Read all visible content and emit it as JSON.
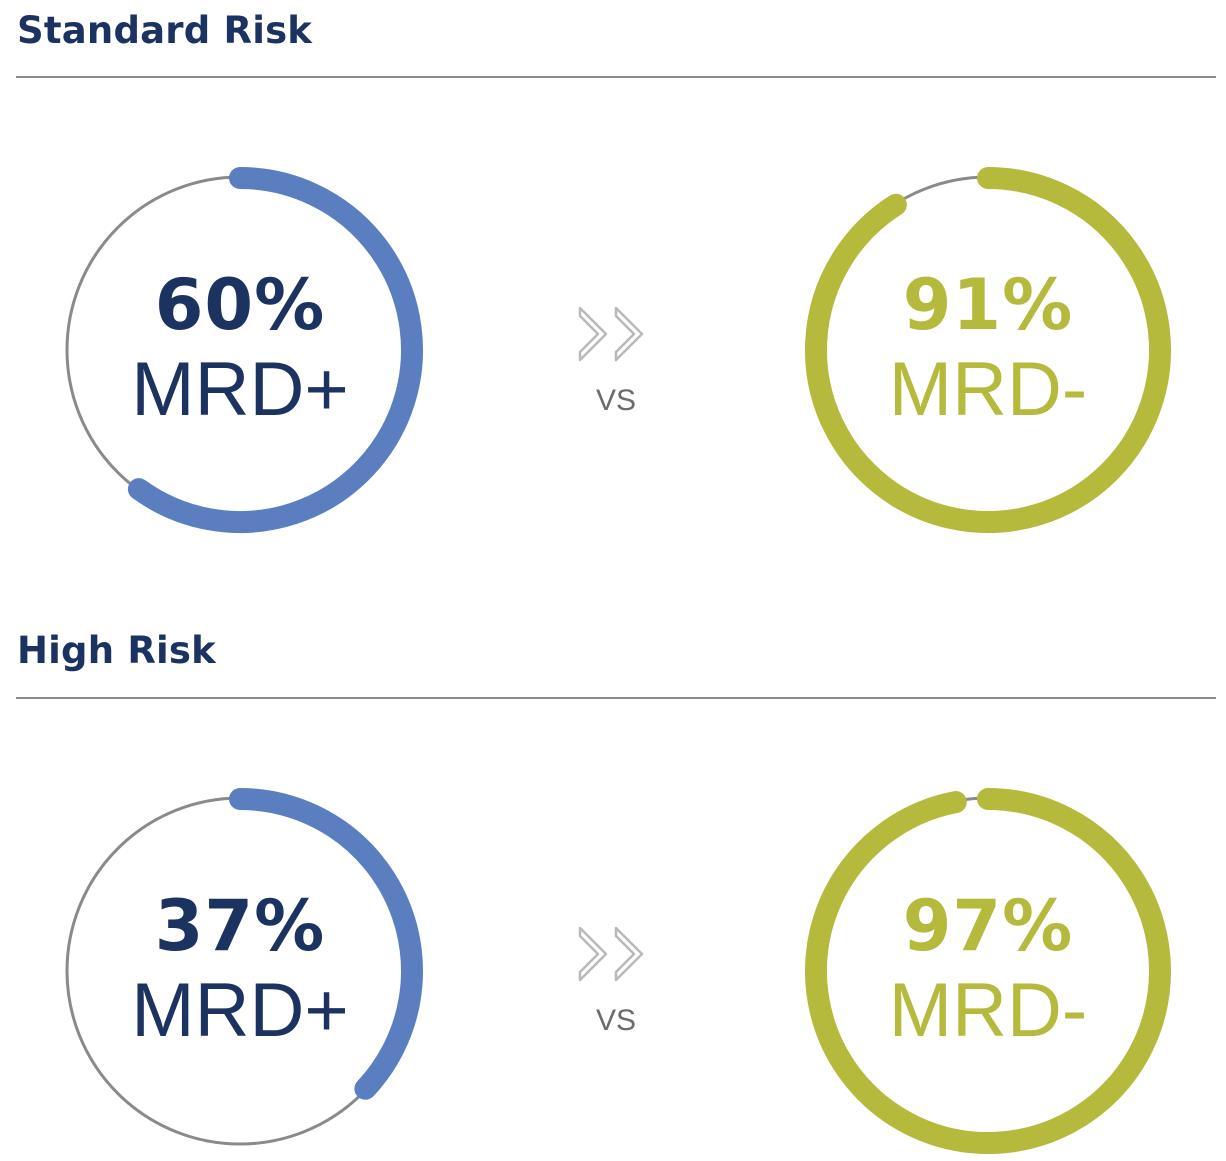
{
  "colors": {
    "title": "#1c3260",
    "positive": "#5b7ec1",
    "negative": "#b5b93c",
    "track": "#8a8a8a",
    "vs": "#6b6b6b"
  },
  "icons": {
    "vs_arrow": "double-chevron-right-icon"
  },
  "chart_data": [
    {
      "type": "pie",
      "title": "Standard Risk",
      "comparison": [
        {
          "value": 60,
          "percent_label": "60%",
          "label": "MRD+",
          "color": "#5b7ec1"
        },
        {
          "value": 91,
          "percent_label": "91%",
          "label": "MRD-",
          "color": "#b5b93c"
        }
      ],
      "separator_label": "VS"
    },
    {
      "type": "pie",
      "title": "High Risk",
      "comparison": [
        {
          "value": 37,
          "percent_label": "37%",
          "label": "MRD+",
          "color": "#5b7ec1"
        },
        {
          "value": 97,
          "percent_label": "97%",
          "label": "MRD-",
          "color": "#b5b93c"
        }
      ],
      "separator_label": "VS"
    }
  ]
}
